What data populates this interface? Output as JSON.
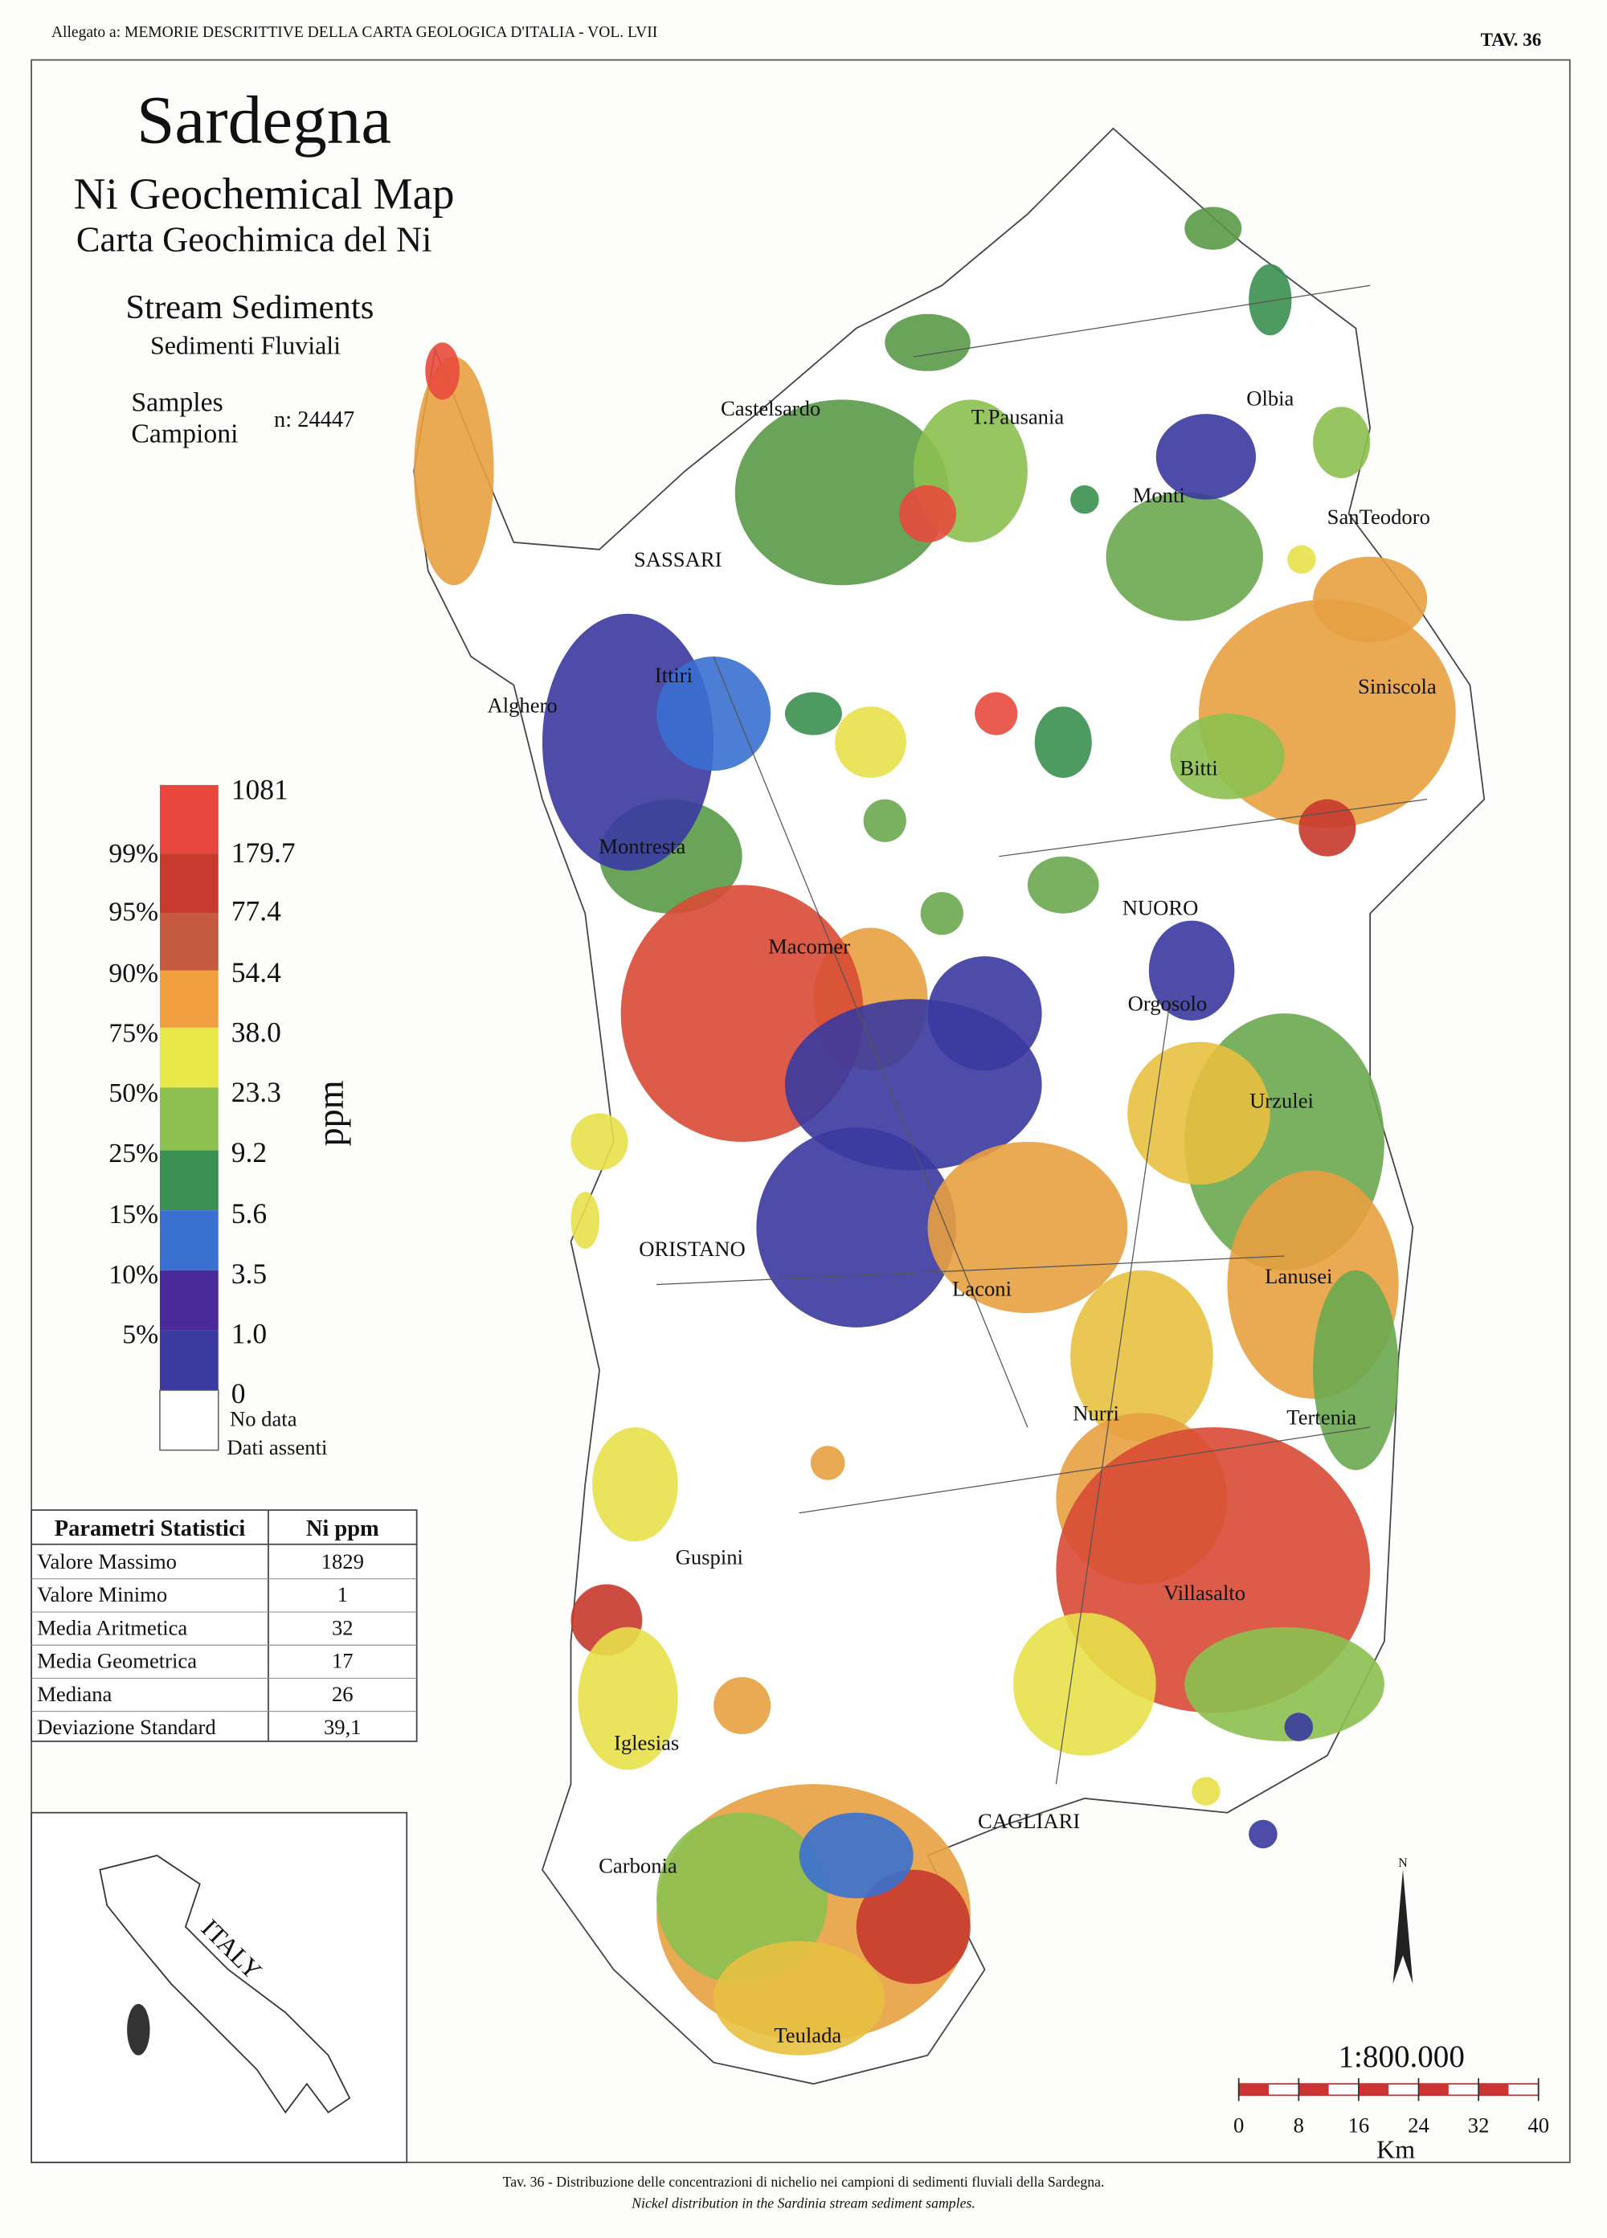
{
  "header": {
    "left": "Allegato a: MEMORIE DESCRITTIVE DELLA CARTA GEOLOGICA D'ITALIA - VOL. LVII",
    "right": "TAV. 36"
  },
  "title": {
    "main": "Sardegna",
    "line1": "Ni Geochemical Map",
    "line2": "Carta Geochimica del Ni",
    "sub1": "Stream Sediments",
    "sub2": "Sedimenti Fluviali",
    "samples_en": "Samples",
    "samples_it": "Campioni",
    "n": "n: 24447"
  },
  "legend": {
    "values": [
      "1081",
      "179.7",
      "77.4",
      "54.4",
      "38.0",
      "23.3",
      "9.2",
      "5.6",
      "3.5",
      "1.0",
      "0"
    ],
    "percentiles": [
      "99%",
      "95%",
      "90%",
      "75%",
      "50%",
      "25%",
      "15%",
      "10%",
      "5%"
    ],
    "unit": "ppm",
    "no_data": "No data",
    "no_data_it": "Dati assenti"
  },
  "table": {
    "header": [
      "Parametri Statistici",
      "Ni  ppm"
    ],
    "rows": [
      [
        "Valore Massimo",
        "1829"
      ],
      [
        "Valore Minimo",
        "1"
      ],
      [
        "Media Aritmetica",
        "32"
      ],
      [
        "Media Geometrica",
        "17"
      ],
      [
        "Mediana",
        "26"
      ],
      [
        "Deviazione Standard",
        "39,1"
      ]
    ]
  },
  "inset": {
    "label": "ITALY"
  },
  "places": [
    "Castelsardo",
    "T.Pausania",
    "Olbia",
    "Monti",
    "SanTeodoro",
    "SASSARI",
    "Ittiri",
    "Alghero",
    "Siniscola",
    "Bitti",
    "Montresta",
    "NUORO",
    "Macomer",
    "Orgosolo",
    "Urzulei",
    "ORISTANO",
    "Laconi",
    "Lanusei",
    "Nurri",
    "Tertenia",
    "Guspini",
    "Villasalto",
    "Iglesias",
    "CAGLIARI",
    "Carbonia",
    "Teulada"
  ],
  "scale": {
    "ratio": "1:800.000",
    "ticks": [
      "0",
      "8",
      "16",
      "24",
      "32",
      "40"
    ],
    "unit": "Km",
    "north": "N"
  },
  "caption": {
    "it": "Tav. 36 - Distribuzione delle concentrazioni di nichelio nei campioni di sedimenti fluviali della Sardegna.",
    "en": "Nickel distribution in the Sardinia stream sediment samples."
  }
}
